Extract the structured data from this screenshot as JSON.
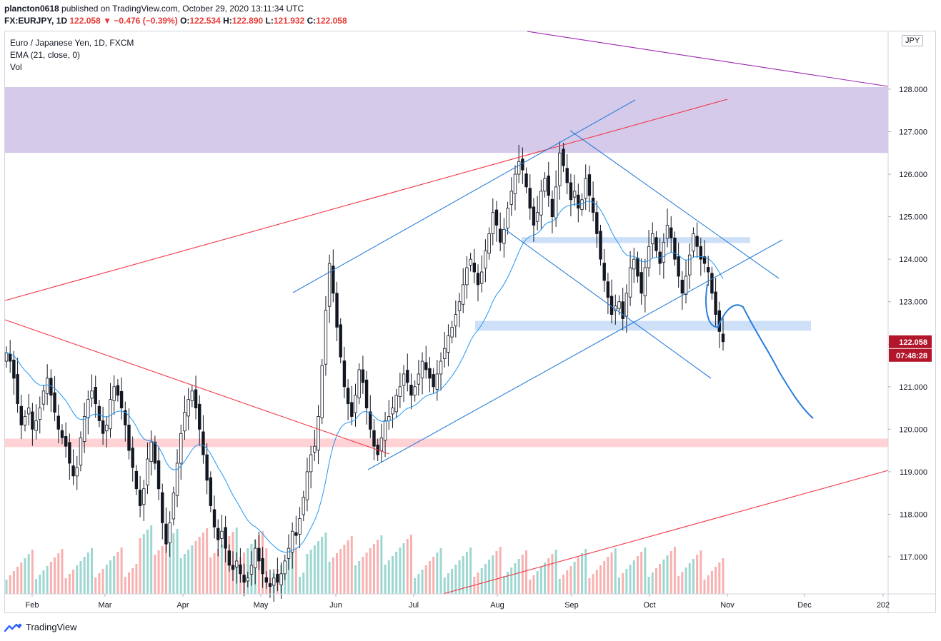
{
  "header": {
    "user": "plancton0618",
    "published_text": "published on TradingView.com, October 29, 2020 13:11:34 UTC",
    "symbol_prefix": "FX:EURJPY, 1D",
    "close_val": "122.058",
    "change": "▼ −0.476 (−0.39%)",
    "o_label": "O:",
    "o_val": "122.534",
    "h_label": "H:",
    "h_val": "122.890",
    "l_label": "L:",
    "l_val": "121.932",
    "c_label": "C:",
    "c_val": "122.058"
  },
  "legend": {
    "line1": "Euro / Japanese Yen, 1D, FXCM",
    "line2": "EMA (21, close, 0)",
    "line3": "Vol"
  },
  "currency_badge": "JPY",
  "price_label": {
    "price": "122.058",
    "countdown": "07:48:28"
  },
  "footer": {
    "brand": "TradingView"
  },
  "colors": {
    "up": "#26a69a",
    "down": "#ef5350",
    "candle_body": "#131722",
    "ema": "#2196f3",
    "purple_zone": "#d1c4e9",
    "red_zone": "#ffcdd2",
    "blue_zone": "#c9ddf6",
    "red_line": "#f23645",
    "blue_line": "#2962ff",
    "purple_line": "#9c27b0",
    "price_label_bg": "#b2162b"
  },
  "chart_data": {
    "type": "candlestick",
    "y_axis": {
      "min": 116.2,
      "max": 128.8,
      "ticks": [
        "117.000",
        "118.000",
        "119.000",
        "120.000",
        "121.000",
        "122.000",
        "123.000",
        "124.000",
        "125.000",
        "126.000",
        "127.000",
        "128.000"
      ]
    },
    "x_axis": {
      "tick_labels": [
        "Feb",
        "Mar",
        "Apr",
        "May",
        "Jun",
        "Jul",
        "Aug",
        "Sep",
        "Oct",
        "Nov",
        "Dec",
        "202"
      ]
    },
    "last_close": 122.058,
    "ohlc_last": {
      "open": 122.534,
      "high": 122.89,
      "low": 121.932,
      "close": 122.058
    },
    "zones": [
      {
        "name": "supply-zone",
        "from": 126.5,
        "to": 128.05
      },
      {
        "name": "support-zone",
        "from": 119.58,
        "to": 119.78
      },
      {
        "name": "resistance-zone",
        "from": 124.38,
        "to": 124.52
      },
      {
        "name": "breakout-zone",
        "from": 122.32,
        "to": 122.55
      }
    ],
    "close_series": [
      121.8,
      121.6,
      121.2,
      120.6,
      120.1,
      120.3,
      120.5,
      120.0,
      120.2,
      120.5,
      120.9,
      121.2,
      120.8,
      120.4,
      120.0,
      119.8,
      119.6,
      119.2,
      118.9,
      119.1,
      119.8,
      120.3,
      120.7,
      120.9,
      120.6,
      120.2,
      119.9,
      120.1,
      120.7,
      121.0,
      120.8,
      120.5,
      120.1,
      119.5,
      119.1,
      118.6,
      118.2,
      118.6,
      119.3,
      119.7,
      119.2,
      118.6,
      117.8,
      117.3,
      117.8,
      118.5,
      119.2,
      119.9,
      120.4,
      120.7,
      120.9,
      120.5,
      120.0,
      119.4,
      118.8,
      118.2,
      117.7,
      117.4,
      117.6,
      117.2,
      116.8,
      116.7,
      116.9,
      116.6,
      116.4,
      116.5,
      116.8,
      117.2,
      116.9,
      116.6,
      116.4,
      116.3,
      116.5,
      116.4,
      116.6,
      116.9,
      117.2,
      117.6,
      117.5,
      117.9,
      118.4,
      119.0,
      119.4,
      119.6,
      120.3,
      121.5,
      122.8,
      123.9,
      123.2,
      122.4,
      121.7,
      121.0,
      120.6,
      120.3,
      120.8,
      121.4,
      121.1,
      120.5,
      120.0,
      119.6,
      119.4,
      119.8,
      120.2,
      120.3,
      120.5,
      120.8,
      121.0,
      121.3,
      121.1,
      120.8,
      121.0,
      121.3,
      121.6,
      121.4,
      121.2,
      121.0,
      121.3,
      121.6,
      121.9,
      122.2,
      122.4,
      122.7,
      123.0,
      123.4,
      123.8,
      124.0,
      123.7,
      123.4,
      123.7,
      124.2,
      124.6,
      125.1,
      124.8,
      124.4,
      124.7,
      125.2,
      125.6,
      126.0,
      126.3,
      126.1,
      125.7,
      125.2,
      124.8,
      125.1,
      125.6,
      125.9,
      125.5,
      125.0,
      125.7,
      126.5,
      126.2,
      125.8,
      125.4,
      125.6,
      125.2,
      125.4,
      125.9,
      125.5,
      125.1,
      124.6,
      124.0,
      123.5,
      123.1,
      122.7,
      122.9,
      123.0,
      122.6,
      123.2,
      123.8,
      124.0,
      123.6,
      123.2,
      123.8,
      124.3,
      124.6,
      124.2,
      123.9,
      124.4,
      124.8,
      124.5,
      124.0,
      123.6,
      123.2,
      123.6,
      124.1,
      124.6,
      124.3,
      124.0,
      123.9,
      123.7,
      123.2,
      122.7,
      122.3,
      122.058
    ],
    "ema_period": 21,
    "volume_note": "Vol histogram, colors by candle direction"
  }
}
